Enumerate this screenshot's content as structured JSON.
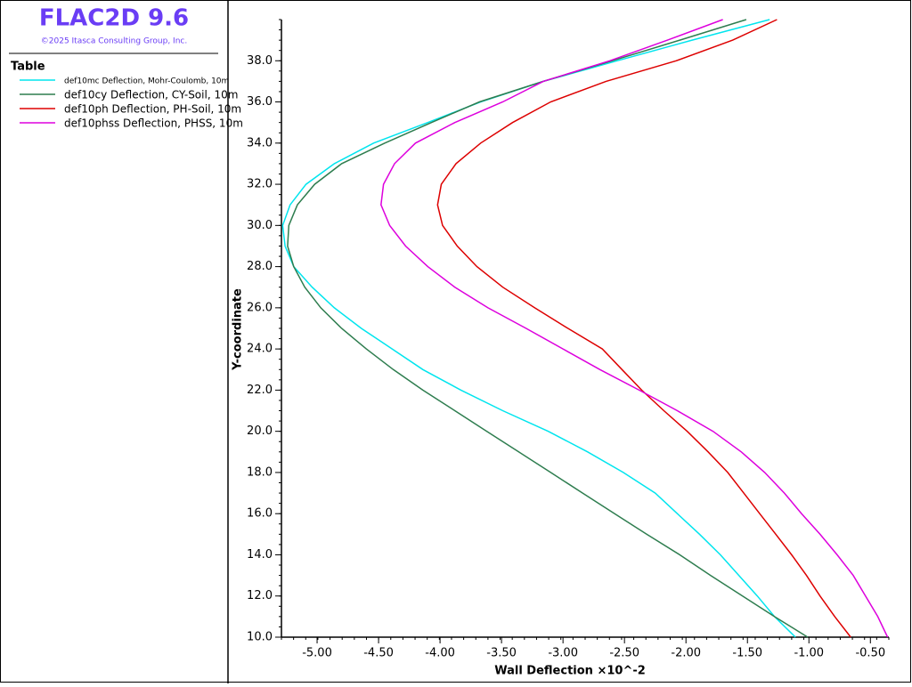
{
  "chart_data": {
    "type": "line",
    "title": "FLAC2D 9.6",
    "copyright": "©2025 Itasca Consulting Group, Inc.",
    "legend_title": "Table",
    "xlabel": "Wall Deflection ×10^-2",
    "ylabel": "Y-coordinate",
    "y": [
      10,
      11,
      12,
      13,
      14,
      15,
      16,
      17,
      18,
      19,
      20,
      21,
      22,
      23,
      24,
      25,
      26,
      27,
      28,
      29,
      30,
      31,
      32,
      33,
      34,
      35,
      36,
      37,
      38,
      39,
      40
    ],
    "series": [
      {
        "name": "def10mc Deflection, Mohr-Coulomb, 10m",
        "color": "#00e5ee",
        "values": [
          -1.11,
          -1.28,
          -1.42,
          -1.57,
          -1.72,
          -1.89,
          -2.07,
          -2.25,
          -2.51,
          -2.8,
          -3.12,
          -3.49,
          -3.83,
          -4.14,
          -4.39,
          -4.64,
          -4.86,
          -5.04,
          -5.19,
          -5.26,
          -5.28,
          -5.22,
          -5.09,
          -4.86,
          -4.54,
          -4.1,
          -3.67,
          -3.16,
          -2.56,
          -1.95,
          -1.32
        ]
      },
      {
        "name": "def10cy Deflection, CY-Soil, 10m",
        "color": "#2e7d4f",
        "values": [
          -1.01,
          -1.28,
          -1.54,
          -1.8,
          -2.05,
          -2.32,
          -2.58,
          -2.84,
          -3.1,
          -3.36,
          -3.62,
          -3.88,
          -4.14,
          -4.38,
          -4.6,
          -4.8,
          -4.97,
          -5.1,
          -5.19,
          -5.24,
          -5.23,
          -5.16,
          -5.02,
          -4.8,
          -4.45,
          -4.07,
          -3.68,
          -3.16,
          -2.6,
          -2.05,
          -1.51
        ]
      },
      {
        "name": "def10ph Deflection, PH-Soil, 10m",
        "color": "#dd0000",
        "values": [
          -0.66,
          -0.79,
          -0.91,
          -1.02,
          -1.14,
          -1.27,
          -1.4,
          -1.53,
          -1.66,
          -1.82,
          -1.99,
          -2.18,
          -2.36,
          -2.52,
          -2.68,
          -2.96,
          -3.23,
          -3.49,
          -3.7,
          -3.86,
          -3.98,
          -4.02,
          -3.99,
          -3.87,
          -3.67,
          -3.41,
          -3.1,
          -2.65,
          -2.08,
          -1.62,
          -1.26
        ]
      },
      {
        "name": "def10phss Deflection, PHSS, 10m",
        "color": "#dd00dd",
        "values": [
          -0.36,
          -0.44,
          -0.54,
          -0.64,
          -0.77,
          -0.91,
          -1.06,
          -1.2,
          -1.36,
          -1.55,
          -1.78,
          -2.07,
          -2.38,
          -2.7,
          -3.0,
          -3.3,
          -3.61,
          -3.88,
          -4.1,
          -4.28,
          -4.41,
          -4.48,
          -4.46,
          -4.37,
          -4.2,
          -3.88,
          -3.49,
          -3.16,
          -2.62,
          -2.15,
          -1.7
        ]
      }
    ],
    "xlim": [
      -5.29,
      -0.35
    ],
    "ylim": [
      10,
      40
    ],
    "xticks": [
      {
        "value": -5,
        "label": "-5.00"
      },
      {
        "value": -4.5,
        "label": "-4.50"
      },
      {
        "value": -4,
        "label": "-4.00"
      },
      {
        "value": -3.5,
        "label": "-3.50"
      },
      {
        "value": -3,
        "label": "-3.00"
      },
      {
        "value": -2.5,
        "label": "-2.50"
      },
      {
        "value": -2,
        "label": "-2.00"
      },
      {
        "value": -1.5,
        "label": "-1.50"
      },
      {
        "value": -1,
        "label": "-1.00"
      },
      {
        "value": -0.5,
        "label": "-0.50"
      }
    ],
    "yticks": [
      {
        "value": 10,
        "label": "10.0"
      },
      {
        "value": 12,
        "label": "12.0"
      },
      {
        "value": 14,
        "label": "14.0"
      },
      {
        "value": 16,
        "label": "16.0"
      },
      {
        "value": 18,
        "label": "18.0"
      },
      {
        "value": 20,
        "label": "20.0"
      },
      {
        "value": 22,
        "label": "22.0"
      },
      {
        "value": 24,
        "label": "24.0"
      },
      {
        "value": 26,
        "label": "26.0"
      },
      {
        "value": 28,
        "label": "28.0"
      },
      {
        "value": 30,
        "label": "30.0"
      },
      {
        "value": 32,
        "label": "32.0"
      },
      {
        "value": 34,
        "label": "34.0"
      },
      {
        "value": 36,
        "label": "36.0"
      },
      {
        "value": 38,
        "label": "38.0"
      }
    ]
  }
}
